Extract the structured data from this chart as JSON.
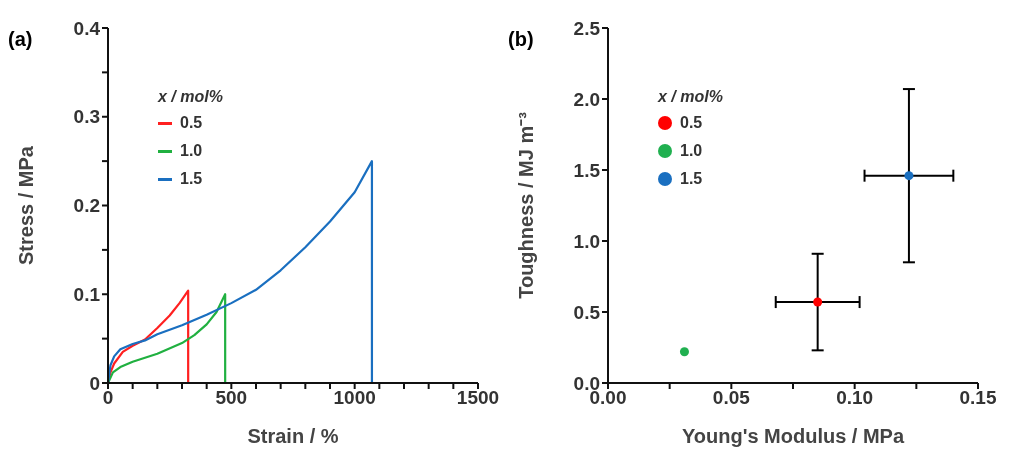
{
  "chart_data": [
    {
      "type": "line",
      "title": "(a)",
      "xlabel": "Strain / %",
      "ylabel": "Stress / MPa",
      "legend_title": "x / mol%",
      "legend": "top left",
      "grid": false,
      "marker": "none",
      "line_style": "solid",
      "xlim": [
        0,
        1500
      ],
      "xticks": [
        0,
        {
          "value": 100,
          "label": null
        },
        {
          "value": 200,
          "label": null
        },
        {
          "value": 300,
          "label": null
        },
        {
          "value": 400,
          "label": null
        },
        500,
        {
          "value": 600,
          "label": null
        },
        {
          "value": 700,
          "label": null
        },
        {
          "value": 800,
          "label": null
        },
        {
          "value": 900,
          "label": null
        },
        1000,
        {
          "value": 1100,
          "label": null
        },
        {
          "value": 1200,
          "label": null
        },
        {
          "value": 1300,
          "label": null
        },
        {
          "value": 1400,
          "label": null
        },
        1500
      ],
      "ylim": [
        0,
        0.4
      ],
      "yticks": [
        0,
        {
          "value": 0.05,
          "label": null
        },
        0.1,
        {
          "value": 0.15,
          "label": null
        },
        0.2,
        {
          "value": 0.25,
          "label": null
        },
        0.3,
        {
          "value": 0.35,
          "label": null
        },
        0.4
      ],
      "series": [
        {
          "name": "0.5",
          "color": "#ff2020",
          "x": [
            0,
            10,
            25,
            60,
            100,
            150,
            200,
            250,
            290,
            325,
            325
          ],
          "values": [
            0,
            0.012,
            0.022,
            0.035,
            0.042,
            0.049,
            0.062,
            0.076,
            0.09,
            0.104,
            0
          ]
        },
        {
          "name": "1.0",
          "color": "#20b040",
          "x": [
            0,
            20,
            50,
            100,
            200,
            300,
            350,
            400,
            440,
            475,
            475
          ],
          "values": [
            0,
            0.012,
            0.018,
            0.024,
            0.033,
            0.045,
            0.054,
            0.066,
            0.08,
            0.1,
            0
          ]
        },
        {
          "name": "1.5",
          "color": "#1a6fc0",
          "x": [
            0,
            10,
            25,
            50,
            100,
            150,
            200,
            300,
            400,
            500,
            600,
            700,
            800,
            900,
            1000,
            1070,
            1070
          ],
          "values": [
            0,
            0.02,
            0.03,
            0.038,
            0.044,
            0.048,
            0.055,
            0.065,
            0.077,
            0.09,
            0.105,
            0.127,
            0.153,
            0.182,
            0.215,
            0.25,
            0
          ]
        }
      ]
    },
    {
      "type": "scatter",
      "title": "(b)",
      "xlabel": "Young's Modulus / MPa",
      "ylabel": "Toughness / MJ m⁻³",
      "legend_title": "x / mol%",
      "legend": "top left",
      "grid": false,
      "marker": "circle",
      "xlim": [
        0,
        0.15
      ],
      "xticks": [
        {
          "value": 0,
          "label": "0.00"
        },
        {
          "value": 0.025,
          "label": null
        },
        {
          "value": 0.05,
          "label": "0.05"
        },
        {
          "value": 0.075,
          "label": null
        },
        {
          "value": 0.1,
          "label": "0.10"
        },
        {
          "value": 0.125,
          "label": null
        },
        {
          "value": 0.15,
          "label": "0.15"
        }
      ],
      "ylim": [
        0,
        2.5
      ],
      "yticks": [
        {
          "value": 0,
          "label": "0.0"
        },
        0.5,
        {
          "value": 1,
          "label": "1.0"
        },
        1.5,
        {
          "value": 2,
          "label": "2.0"
        },
        2.5
      ],
      "series": [
        {
          "name": "0.5",
          "color": "#ff0000",
          "x": [
            0.085
          ],
          "values": [
            0.57
          ],
          "errors": [
            0.34
          ],
          "xerrors": [
            0.017
          ]
        },
        {
          "name": "1.0",
          "color": "#20b050",
          "x": [
            0.031
          ],
          "values": [
            0.22
          ],
          "errors": [
            null
          ],
          "xerrors": [
            null
          ]
        },
        {
          "name": "1.5",
          "color": "#1a6fc0",
          "x": [
            0.122
          ],
          "values": [
            1.46
          ],
          "errors": [
            0.61
          ],
          "xerrors": [
            0.018
          ]
        }
      ]
    }
  ]
}
